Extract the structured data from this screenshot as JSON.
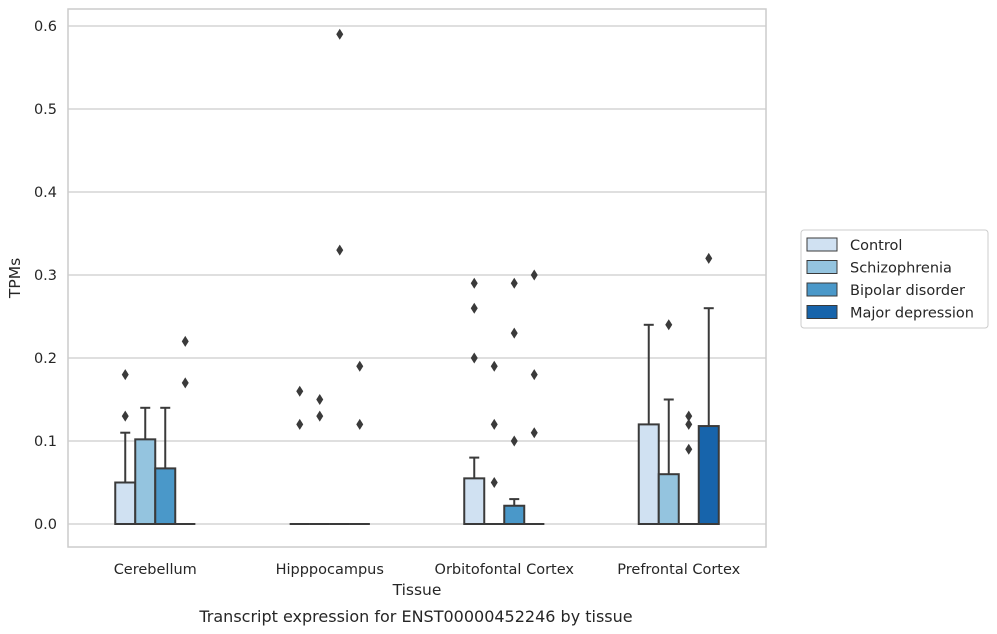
{
  "chart_data": {
    "type": "box",
    "title": "",
    "caption": "Transcript expression for ENST00000452246 by tissue",
    "xlabel": "Tissue",
    "ylabel": "TPMs",
    "ylim": [
      -0.028,
      0.62
    ],
    "yticks": [
      0.0,
      0.1,
      0.2,
      0.3,
      0.4,
      0.5,
      0.6
    ],
    "ytick_labels": [
      "0.0",
      "0.1",
      "0.2",
      "0.3",
      "0.4",
      "0.5",
      "0.6"
    ],
    "grid": "horizontal",
    "legend_position": "right",
    "categories": [
      "Cerebellum",
      "Hipppocampus",
      "Orbitofontal Cortex",
      "Prefrontal Cortex"
    ],
    "series": [
      {
        "name": "Control",
        "color": "#d0e1f2",
        "boxes": [
          {
            "q1": 0.0,
            "median": 0.0,
            "q3": 0.05,
            "whisker_low": 0.0,
            "whisker_high": 0.11,
            "outliers": [
              0.13,
              0.18
            ]
          },
          {
            "q1": 0.0,
            "median": 0.0,
            "q3": 0.0,
            "whisker_low": 0.0,
            "whisker_high": 0.0,
            "outliers": [
              0.12,
              0.16
            ]
          },
          {
            "q1": 0.0,
            "median": 0.0,
            "q3": 0.055,
            "whisker_low": 0.0,
            "whisker_high": 0.08,
            "outliers": [
              0.2,
              0.26,
              0.29
            ]
          },
          {
            "q1": 0.0,
            "median": 0.0,
            "q3": 0.12,
            "whisker_low": 0.0,
            "whisker_high": 0.24,
            "outliers": []
          }
        ]
      },
      {
        "name": "Schizophrenia",
        "color": "#94c4df",
        "boxes": [
          {
            "q1": 0.0,
            "median": 0.0,
            "q3": 0.102,
            "whisker_low": 0.0,
            "whisker_high": 0.14,
            "outliers": []
          },
          {
            "q1": 0.0,
            "median": 0.0,
            "q3": 0.0,
            "whisker_low": 0.0,
            "whisker_high": 0.0,
            "outliers": [
              0.13,
              0.15
            ]
          },
          {
            "q1": 0.0,
            "median": 0.0,
            "q3": 0.0,
            "whisker_low": 0.0,
            "whisker_high": 0.0,
            "outliers": [
              0.05,
              0.12,
              0.19
            ]
          },
          {
            "q1": 0.0,
            "median": 0.0,
            "q3": 0.06,
            "whisker_low": 0.0,
            "whisker_high": 0.15,
            "outliers": [
              0.24
            ]
          }
        ]
      },
      {
        "name": "Bipolar disorder",
        "color": "#4a98c9",
        "boxes": [
          {
            "q1": 0.0,
            "median": 0.0,
            "q3": 0.067,
            "whisker_low": 0.0,
            "whisker_high": 0.14,
            "outliers": []
          },
          {
            "q1": 0.0,
            "median": 0.0,
            "q3": 0.0,
            "whisker_low": 0.0,
            "whisker_high": 0.0,
            "outliers": [
              0.33,
              0.59
            ]
          },
          {
            "q1": 0.0,
            "median": 0.0,
            "q3": 0.022,
            "whisker_low": 0.0,
            "whisker_high": 0.03,
            "outliers": [
              0.1,
              0.23,
              0.29
            ]
          },
          {
            "q1": 0.0,
            "median": 0.0,
            "q3": 0.0,
            "whisker_low": 0.0,
            "whisker_high": 0.0,
            "outliers": [
              0.09,
              0.12,
              0.13
            ]
          }
        ]
      },
      {
        "name": "Major depression",
        "color": "#1764ab",
        "boxes": [
          {
            "q1": 0.0,
            "median": 0.0,
            "q3": 0.0,
            "whisker_low": 0.0,
            "whisker_high": 0.0,
            "outliers": [
              0.17,
              0.22
            ]
          },
          {
            "q1": 0.0,
            "median": 0.0,
            "q3": 0.0,
            "whisker_low": 0.0,
            "whisker_high": 0.0,
            "outliers": [
              0.12,
              0.19
            ]
          },
          {
            "q1": 0.0,
            "median": 0.0,
            "q3": 0.0,
            "whisker_low": 0.0,
            "whisker_high": 0.0,
            "outliers": [
              0.11,
              0.18,
              0.3
            ]
          },
          {
            "q1": 0.0,
            "median": 0.0,
            "q3": 0.118,
            "whisker_low": 0.0,
            "whisker_high": 0.26,
            "outliers": [
              0.32
            ]
          }
        ]
      }
    ]
  }
}
